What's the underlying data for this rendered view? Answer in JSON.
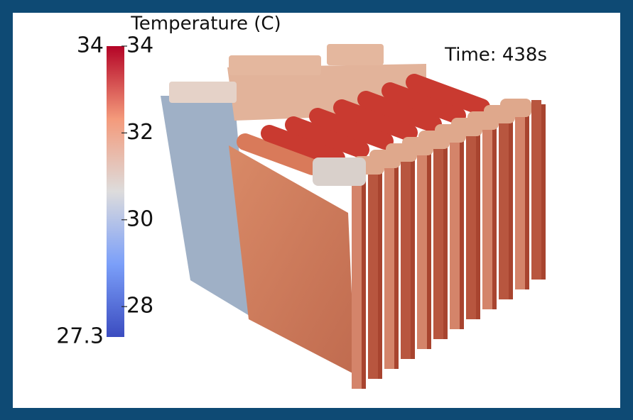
{
  "colorbar": {
    "title": "Temperature (C)",
    "range": [
      27.3,
      34
    ],
    "ticks": [
      28,
      30,
      32,
      34
    ]
  },
  "time_label": "Time: 438s"
}
